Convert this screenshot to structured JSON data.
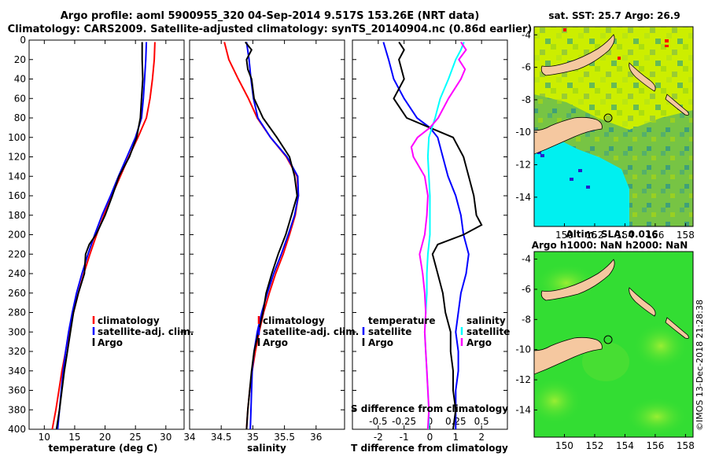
{
  "figure": {
    "title_line1": "Argo profile: aoml 5900955_320 04-Sep-2014 9.517S 153.26E (NRT data)",
    "title_line2": "Climatology: CARS2009. Satellite-adjusted climatology: synTS_20140904.nc (0.86d earlier)",
    "credit": "©IMOS 13-Dec-2018 21:28:38"
  },
  "colors": {
    "climatology": "#ff0000",
    "satellite": "#0000ff",
    "argo": "#000000",
    "sat_salinity": "#00ffff",
    "argo_salinity": "#ff00ff",
    "land": "#f5c8a0",
    "sst_sea": "#ccee00",
    "sst_cold": "#00ffff",
    "sla_sea": "#33dd33"
  },
  "chart_data": [
    {
      "type": "line",
      "id": "temperature",
      "xlabel": "temperature (deg C)",
      "ylabel": "",
      "xlim": [
        7.5,
        33
      ],
      "ylim": [
        400,
        0
      ],
      "xticks": [
        "10",
        "15",
        "20",
        "25",
        "30"
      ],
      "yticks": [
        "0",
        "20",
        "40",
        "60",
        "80",
        "100",
        "120",
        "140",
        "160",
        "180",
        "200",
        "220",
        "240",
        "260",
        "280",
        "300",
        "320",
        "340",
        "360",
        "380",
        "400"
      ],
      "legend": [
        "climatology",
        "satellite-adj. clim.",
        "Argo"
      ],
      "series": [
        {
          "name": "climatology",
          "depth": [
            2,
            20,
            40,
            60,
            80,
            100,
            120,
            140,
            160,
            180,
            200,
            220,
            240,
            260,
            280,
            300,
            320,
            340,
            360,
            380,
            400
          ],
          "values": [
            28.2,
            28.1,
            27.8,
            27.4,
            26.8,
            25.4,
            23.9,
            22.5,
            21.1,
            19.8,
            18.6,
            17.5,
            16.5,
            15.6,
            14.8,
            14.1,
            13.5,
            12.9,
            12.4,
            11.9,
            11.3
          ]
        },
        {
          "name": "satellite-adj. clim.",
          "depth": [
            2,
            20,
            40,
            60,
            80,
            100,
            120,
            140,
            160,
            180,
            200,
            220,
            240,
            260,
            280,
            300,
            320,
            340,
            360,
            380,
            400
          ],
          "values": [
            26.8,
            26.7,
            26.5,
            26.3,
            26.0,
            25.0,
            23.6,
            22.2,
            20.9,
            19.5,
            18.3,
            17.2,
            16.2,
            15.3,
            14.6,
            14.0,
            13.5,
            13.1,
            12.8,
            12.5,
            12.2
          ]
        },
        {
          "name": "Argo",
          "depth": [
            2,
            20,
            40,
            60,
            80,
            100,
            120,
            140,
            160,
            180,
            200,
            210,
            220,
            240,
            260,
            280,
            300,
            320,
            340,
            360,
            380,
            400
          ],
          "values": [
            26.1,
            26.1,
            26.2,
            26.0,
            25.8,
            25.2,
            24.0,
            22.3,
            21.2,
            20.0,
            18.5,
            17.4,
            16.8,
            16.6,
            15.6,
            14.8,
            14.3,
            13.8,
            13.3,
            12.9,
            12.5,
            12.0
          ]
        }
      ]
    },
    {
      "type": "line",
      "id": "salinity",
      "xlabel": "salinity",
      "ylabel": "",
      "xlim": [
        34,
        36.45
      ],
      "ylim": [
        400,
        0
      ],
      "xticks": [
        "34",
        "34.5",
        "35",
        "35.5",
        "36"
      ],
      "legend": [
        "climatology",
        "satellite-adj. clim.",
        "Argo"
      ],
      "series": [
        {
          "name": "climatology",
          "depth": [
            2,
            20,
            40,
            60,
            80,
            100,
            120,
            140,
            160,
            180,
            200,
            220,
            240,
            260,
            280,
            300,
            320,
            340,
            360,
            380,
            400
          ],
          "values": [
            34.55,
            34.62,
            34.77,
            34.93,
            35.07,
            35.28,
            35.53,
            35.7,
            35.72,
            35.67,
            35.58,
            35.48,
            35.36,
            35.26,
            35.17,
            35.1,
            35.04,
            34.99,
            34.95,
            34.92,
            34.9
          ]
        },
        {
          "name": "satellite-adj. clim.",
          "depth": [
            2,
            20,
            40,
            60,
            80,
            100,
            120,
            140,
            160,
            180,
            200,
            220,
            240,
            260,
            280,
            300,
            320,
            340,
            360,
            380,
            400
          ],
          "values": [
            34.9,
            34.94,
            34.97,
            35.01,
            35.08,
            35.28,
            35.54,
            35.71,
            35.72,
            35.66,
            35.56,
            35.45,
            35.33,
            35.23,
            35.14,
            35.07,
            35.02,
            34.99,
            34.98,
            34.97,
            34.96
          ]
        },
        {
          "name": "Argo",
          "depth": [
            2,
            10,
            20,
            30,
            40,
            60,
            80,
            100,
            120,
            140,
            150,
            160,
            180,
            200,
            220,
            240,
            260,
            280,
            300,
            320,
            340,
            360,
            380,
            400
          ],
          "values": [
            34.88,
            34.98,
            34.9,
            34.92,
            34.98,
            35.02,
            35.16,
            35.38,
            35.58,
            35.66,
            35.68,
            35.7,
            35.61,
            35.52,
            35.4,
            35.3,
            35.21,
            35.16,
            35.09,
            35.02,
            34.98,
            34.95,
            34.92,
            34.9
          ]
        }
      ]
    },
    {
      "type": "line",
      "id": "difference",
      "xlabel": "T difference from climatology",
      "xlabel_top": "S difference from climatology",
      "xlim": [
        -3,
        3
      ],
      "ylim": [
        400,
        0
      ],
      "xticks": [
        "-2",
        "-1",
        "0",
        "1",
        "2"
      ],
      "xticks_top": [
        "-0.5",
        "-0.25",
        "0",
        "0.25",
        "0.5"
      ],
      "legend_temperature_title": "temperature",
      "legend_salinity_title": "salinity",
      "legend": [
        "satellite",
        "Argo",
        "satellite",
        "Argo"
      ],
      "series": [
        {
          "name": "temperature satellite",
          "depth": [
            2,
            20,
            40,
            60,
            80,
            90,
            100,
            120,
            140,
            160,
            180,
            200,
            220,
            240,
            260,
            280,
            300,
            320,
            340,
            360,
            380,
            400
          ],
          "values": [
            -1.8,
            -1.6,
            -1.4,
            -1.0,
            -0.5,
            0.0,
            0.3,
            0.5,
            0.7,
            1.0,
            1.2,
            1.3,
            1.5,
            1.4,
            1.2,
            1.1,
            1.0,
            1.1,
            1.1,
            1.0,
            1.0,
            1.0
          ]
        },
        {
          "name": "temperature Argo",
          "depth": [
            2,
            10,
            20,
            40,
            60,
            80,
            90,
            100,
            120,
            140,
            160,
            180,
            190,
            200,
            210,
            220,
            240,
            260,
            280,
            300,
            320,
            340,
            360,
            380,
            400
          ],
          "values": [
            -1.2,
            -1.0,
            -1.2,
            -1.0,
            -1.4,
            -0.9,
            0.0,
            0.9,
            1.3,
            1.5,
            1.7,
            1.8,
            2.0,
            1.3,
            0.3,
            0.1,
            0.3,
            0.5,
            0.6,
            0.8,
            0.8,
            0.9,
            0.9,
            1.0,
            0.9
          ]
        },
        {
          "name": "salinity satellite",
          "depth": [
            2,
            10,
            20,
            40,
            60,
            80,
            100,
            120,
            140,
            160,
            180,
            200,
            220,
            240,
            260,
            280,
            300,
            320,
            340,
            360,
            380,
            400
          ],
          "values": [
            0.33,
            0.3,
            0.25,
            0.18,
            0.1,
            0.05,
            -0.01,
            -0.02,
            -0.01,
            0.0,
            0.0,
            0.0,
            -0.02,
            -0.03,
            -0.03,
            -0.04,
            -0.05,
            -0.04,
            -0.03,
            -0.02,
            -0.01,
            -0.01
          ]
        },
        {
          "name": "salinity Argo",
          "depth": [
            2,
            10,
            20,
            30,
            40,
            60,
            80,
            90,
            100,
            110,
            120,
            140,
            160,
            180,
            200,
            220,
            240,
            260,
            280,
            300,
            320,
            340,
            360,
            380,
            400
          ],
          "values": [
            0.3,
            0.35,
            0.28,
            0.34,
            0.3,
            0.18,
            0.08,
            0.0,
            -0.12,
            -0.18,
            -0.16,
            -0.05,
            -0.02,
            -0.03,
            -0.05,
            -0.1,
            -0.07,
            -0.05,
            -0.04,
            -0.05,
            -0.04,
            -0.03,
            -0.02,
            -0.01,
            -0.02
          ]
        }
      ]
    },
    {
      "type": "heatmap",
      "id": "sst_map",
      "title": "sat. SST: 25.7 Argo: 26.9",
      "xlim": [
        148,
        158.5
      ],
      "ylim": [
        -15.8,
        -3.5
      ],
      "xticks": [
        "150",
        "152",
        "154",
        "156",
        "158"
      ],
      "yticks": [
        "-4",
        "-6",
        "-8",
        "-10",
        "-12",
        "-14"
      ],
      "float_position": {
        "lon": 153.26,
        "lat": -9.517
      }
    },
    {
      "type": "heatmap",
      "id": "sla_map",
      "title": "Altim. SLA: 0.016",
      "subtitle": "Argo h1000: NaN h2000: NaN",
      "xlim": [
        148,
        158.5
      ],
      "ylim": [
        -15.8,
        -3.5
      ],
      "xticks": [
        "150",
        "152",
        "154",
        "156",
        "158"
      ],
      "yticks": [
        "-4",
        "-6",
        "-8",
        "-10",
        "-12",
        "-14"
      ],
      "float_position": {
        "lon": 153.26,
        "lat": -9.517
      }
    }
  ]
}
